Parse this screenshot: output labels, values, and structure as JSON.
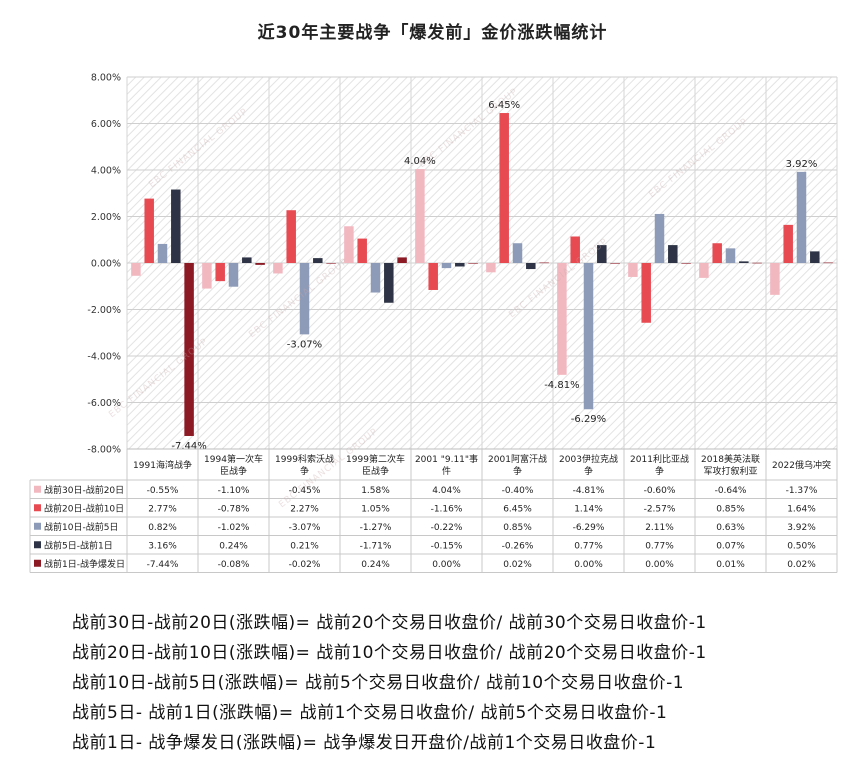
{
  "title": "近30年主要战争「爆发前」金价涨跌幅统计",
  "watermark": "EBC FINANCIAL GROUP",
  "chart_data": {
    "type": "bar",
    "categories": [
      "1991海湾战争",
      "1994第一次车臣战争",
      "1999科索沃战争",
      "1999第二次车臣战争",
      "2001 \"9.11\"事件",
      "2001阿富汗战争",
      "2003伊拉克战争",
      "2011利比亚战争",
      "2018美英法联军攻打叙利亚",
      "2022俄乌冲突"
    ],
    "category_lines": [
      [
        "1991海湾战争"
      ],
      [
        "1994第一次车",
        "臣战争"
      ],
      [
        "1999科索沃战",
        "争"
      ],
      [
        "1999第二次车",
        "臣战争"
      ],
      [
        "2001 \"9.11\"事",
        "件"
      ],
      [
        "2001阿富汗战",
        "争"
      ],
      [
        "2003伊拉克战",
        "争"
      ],
      [
        "2011利比亚战",
        "争"
      ],
      [
        "2018美英法联",
        "军攻打叙利亚"
      ],
      [
        "2022俄乌冲突"
      ]
    ],
    "series": [
      {
        "name": "战前30日-战前20日",
        "color": "#f2b8c0",
        "values": [
          -0.55,
          -1.1,
          -0.45,
          1.58,
          4.04,
          -0.4,
          -4.81,
          -0.6,
          -0.64,
          -1.37
        ]
      },
      {
        "name": "战前20日-战前10日",
        "color": "#e84a52",
        "values": [
          2.77,
          -0.78,
          2.27,
          1.05,
          -1.16,
          6.45,
          1.14,
          -2.57,
          0.85,
          1.64
        ]
      },
      {
        "name": "战前10日-战前5日",
        "color": "#8e9bb8",
        "values": [
          0.82,
          -1.02,
          -3.07,
          -1.27,
          -0.22,
          0.85,
          -6.29,
          2.11,
          0.63,
          3.92
        ]
      },
      {
        "name": "战前5日-战前1日",
        "color": "#2e3445",
        "values": [
          3.16,
          0.24,
          0.21,
          -1.71,
          -0.15,
          -0.26,
          0.77,
          0.77,
          0.07,
          0.5
        ]
      },
      {
        "name": "战前1日-战争爆发日",
        "color": "#8b1a24",
        "values": [
          -7.44,
          -0.08,
          -0.02,
          0.24,
          0.0,
          0.02,
          0.0,
          0.0,
          0.01,
          0.02
        ]
      }
    ],
    "table_values": [
      [
        "-0.55%",
        "-1.10%",
        "-0.45%",
        "1.58%",
        "4.04%",
        "-0.40%",
        "-4.81%",
        "-0.60%",
        "-0.64%",
        "-1.37%"
      ],
      [
        "2.77%",
        "-0.78%",
        "2.27%",
        "1.05%",
        "-1.16%",
        "6.45%",
        "1.14%",
        "-2.57%",
        "0.85%",
        "1.64%"
      ],
      [
        "0.82%",
        "-1.02%",
        "-3.07%",
        "-1.27%",
        "-0.22%",
        "0.85%",
        "-6.29%",
        "2.11%",
        "0.63%",
        "3.92%"
      ],
      [
        "3.16%",
        "0.24%",
        "0.21%",
        "-1.71%",
        "-0.15%",
        "-0.26%",
        "0.77%",
        "0.77%",
        "0.07%",
        "0.50%"
      ],
      [
        "-7.44%",
        "-0.08%",
        "-0.02%",
        "0.24%",
        "0.00%",
        "0.02%",
        "0.00%",
        "0.00%",
        "0.01%",
        "0.02%"
      ]
    ],
    "y_ticks": [
      "8.00%",
      "6.00%",
      "4.00%",
      "2.00%",
      "0.00%",
      "-2.00%",
      "-4.00%",
      "-6.00%",
      "-8.00%"
    ],
    "ylim": [
      -8,
      8
    ],
    "annotations": [
      {
        "series": 4,
        "category": 0,
        "label": "-7.44%"
      },
      {
        "series": 2,
        "category": 2,
        "label": "-3.07%"
      },
      {
        "series": 0,
        "category": 4,
        "label": "4.04%"
      },
      {
        "series": 1,
        "category": 5,
        "label": "6.45%"
      },
      {
        "series": 0,
        "category": 6,
        "label": "-4.81%"
      },
      {
        "series": 2,
        "category": 6,
        "label": "-6.29%"
      },
      {
        "series": 2,
        "category": 9,
        "label": "3.92%"
      }
    ],
    "grid": true,
    "legend": "table-left"
  },
  "formulas": [
    "战前30日-战前20日(涨跌幅)= 战前20个交易日收盘价/ 战前30个交易日收盘价-1",
    "战前20日-战前10日(涨跌幅)= 战前10个交易日收盘价/ 战前20个交易日收盘价-1",
    "战前10日-战前5日(涨跌幅)= 战前5个交易日收盘价/ 战前10个交易日收盘价-1",
    "战前5日- 战前1日(涨跌幅)= 战前1个交易日收盘价/ 战前5个交易日收盘价-1",
    "战前1日- 战争爆发日(涨跌幅)= 战争爆发日开盘价/战前1个交易日收盘价-1"
  ]
}
